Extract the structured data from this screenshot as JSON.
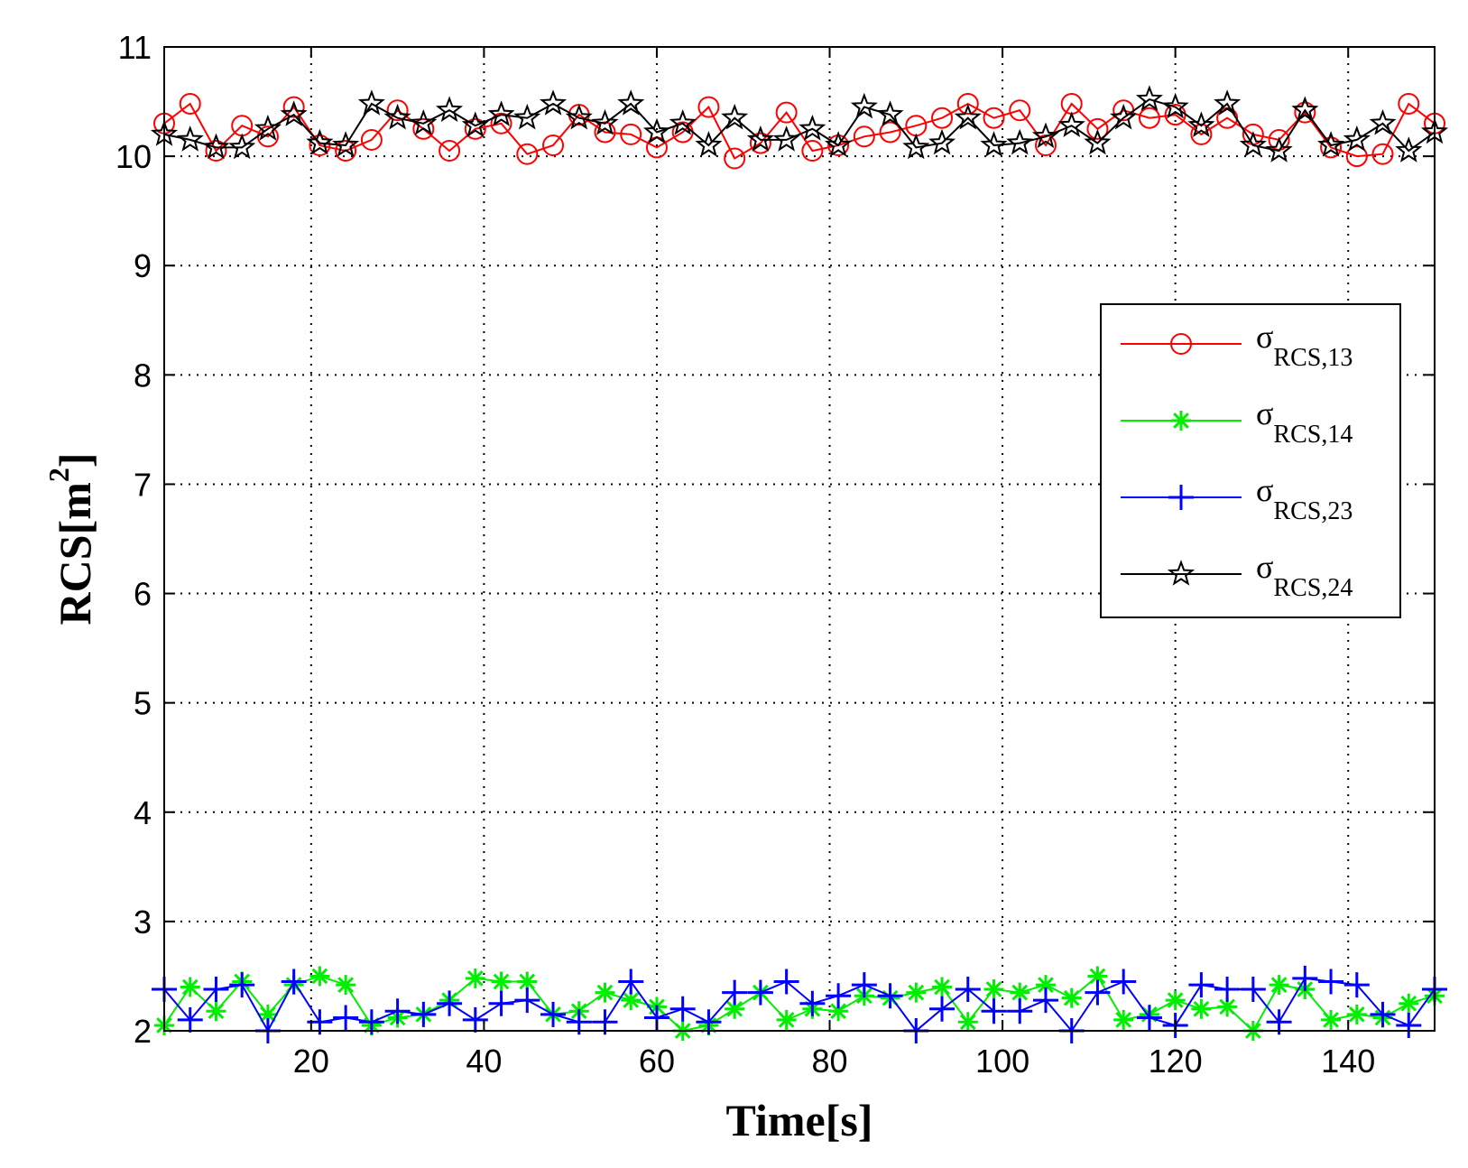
{
  "chart_data": {
    "type": "line",
    "title": "",
    "xlabel": "Time[s]",
    "ylabel_main": "RCS[m",
    "ylabel_sup": "2",
    "ylabel_close": "]",
    "xlim": [
      3,
      150
    ],
    "ylim": [
      2,
      11
    ],
    "xticks": [
      20,
      40,
      60,
      80,
      100,
      120,
      140
    ],
    "yticks": [
      2,
      3,
      4,
      5,
      6,
      7,
      8,
      9,
      10,
      11
    ],
    "grid": true,
    "legend_position": "right",
    "x": [
      3,
      6,
      9,
      12,
      15,
      18,
      21,
      24,
      27,
      30,
      33,
      36,
      39,
      42,
      45,
      48,
      51,
      54,
      57,
      60,
      63,
      66,
      69,
      72,
      75,
      78,
      81,
      84,
      87,
      90,
      93,
      96,
      99,
      102,
      105,
      108,
      111,
      114,
      117,
      120,
      123,
      126,
      129,
      132,
      135,
      138,
      141,
      144,
      147,
      150
    ],
    "series": [
      {
        "name": "σ_RCS,13",
        "legend_symbol": "σ",
        "legend_subscript": "RCS,13",
        "color": "#ff0000",
        "marker": "circle",
        "values": [
          10.3,
          10.48,
          10.05,
          10.28,
          10.18,
          10.45,
          10.1,
          10.05,
          10.15,
          10.42,
          10.25,
          10.05,
          10.25,
          10.3,
          10.02,
          10.1,
          10.38,
          10.22,
          10.2,
          10.08,
          10.22,
          10.45,
          9.98,
          10.12,
          10.4,
          10.05,
          10.1,
          10.18,
          10.22,
          10.28,
          10.35,
          10.48,
          10.35,
          10.42,
          10.1,
          10.48,
          10.25,
          10.42,
          10.35,
          10.38,
          10.2,
          10.35,
          10.2,
          10.15,
          10.4,
          10.08,
          10.0,
          10.02,
          10.48,
          10.3
        ]
      },
      {
        "name": "σ_RCS,14",
        "legend_symbol": "σ",
        "legend_subscript": "RCS,14",
        "color": "#00ee00",
        "marker": "asterisk",
        "values": [
          2.05,
          2.4,
          2.18,
          2.45,
          2.15,
          2.42,
          2.5,
          2.42,
          2.05,
          2.12,
          2.15,
          2.28,
          2.48,
          2.45,
          2.45,
          2.15,
          2.18,
          2.35,
          2.28,
          2.22,
          2.0,
          2.05,
          2.2,
          2.35,
          2.1,
          2.2,
          2.18,
          2.32,
          2.3,
          2.35,
          2.4,
          2.08,
          2.38,
          2.35,
          2.42,
          2.3,
          2.5,
          2.1,
          2.15,
          2.28,
          2.2,
          2.22,
          2.0,
          2.42,
          2.38,
          2.1,
          2.15,
          2.12,
          2.25,
          2.32
        ]
      },
      {
        "name": "σ_RCS,23",
        "legend_symbol": "σ",
        "legend_subscript": "RCS,23",
        "color": "#0000ff",
        "marker": "plus",
        "values": [
          2.38,
          2.1,
          2.38,
          2.42,
          2.0,
          2.45,
          2.08,
          2.12,
          2.08,
          2.18,
          2.15,
          2.25,
          2.1,
          2.25,
          2.28,
          2.15,
          2.08,
          2.08,
          2.45,
          2.12,
          2.2,
          2.08,
          2.35,
          2.35,
          2.45,
          2.25,
          2.32,
          2.42,
          2.32,
          2.0,
          2.2,
          2.38,
          2.18,
          2.18,
          2.28,
          2.0,
          2.35,
          2.45,
          2.12,
          2.05,
          2.42,
          2.38,
          2.38,
          2.08,
          2.48,
          2.45,
          2.42,
          2.15,
          2.05,
          2.38
        ]
      },
      {
        "name": "σ_RCS,24",
        "legend_symbol": "σ",
        "legend_subscript": "RCS,24",
        "color": "#000000",
        "marker": "star",
        "values": [
          10.2,
          10.15,
          10.08,
          10.08,
          10.25,
          10.38,
          10.12,
          10.1,
          10.48,
          10.35,
          10.3,
          10.42,
          10.28,
          10.38,
          10.35,
          10.48,
          10.35,
          10.3,
          10.48,
          10.22,
          10.3,
          10.1,
          10.35,
          10.15,
          10.15,
          10.25,
          10.1,
          10.45,
          10.38,
          10.08,
          10.12,
          10.35,
          10.1,
          10.12,
          10.18,
          10.28,
          10.12,
          10.35,
          10.52,
          10.45,
          10.28,
          10.48,
          10.1,
          10.05,
          10.42,
          10.1,
          10.15,
          10.3,
          10.05,
          10.22
        ]
      }
    ]
  }
}
